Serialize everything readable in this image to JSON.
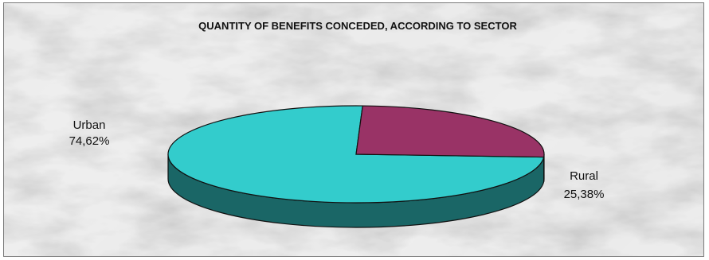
{
  "chart_data": {
    "type": "pie",
    "style": "3d",
    "title": "QUANTITY OF BENEFITS CONCEDED, ACCORDING TO SECTOR",
    "slices": [
      {
        "label": "Urban",
        "value": 74.62,
        "display": "74,62%",
        "color": "#33cccc",
        "side_color": "#1a6666"
      },
      {
        "label": "Rural",
        "value": 25.38,
        "display": "25,38%",
        "color": "#993366",
        "side_color": "#4d1a33"
      }
    ],
    "legend": "none"
  }
}
